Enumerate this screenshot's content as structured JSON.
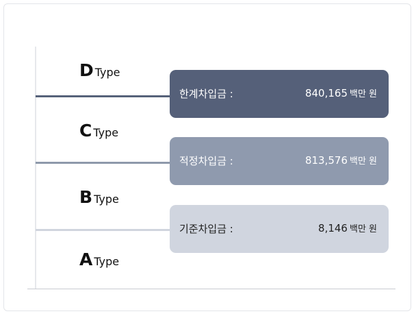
{
  "types": [
    {
      "letter": "D",
      "word": "Type"
    },
    {
      "letter": "C",
      "word": "Type"
    },
    {
      "letter": "B",
      "word": "Type"
    },
    {
      "letter": "A",
      "word": "Type"
    }
  ],
  "boxes": [
    {
      "label": "한계차입금 :",
      "value": "840,165",
      "unit": "백만 원"
    },
    {
      "label": "적정차입금 :",
      "value": "813,576",
      "unit": "백만 원"
    },
    {
      "label": "기준차입금 :",
      "value": "8,146",
      "unit": "백만 원"
    }
  ]
}
